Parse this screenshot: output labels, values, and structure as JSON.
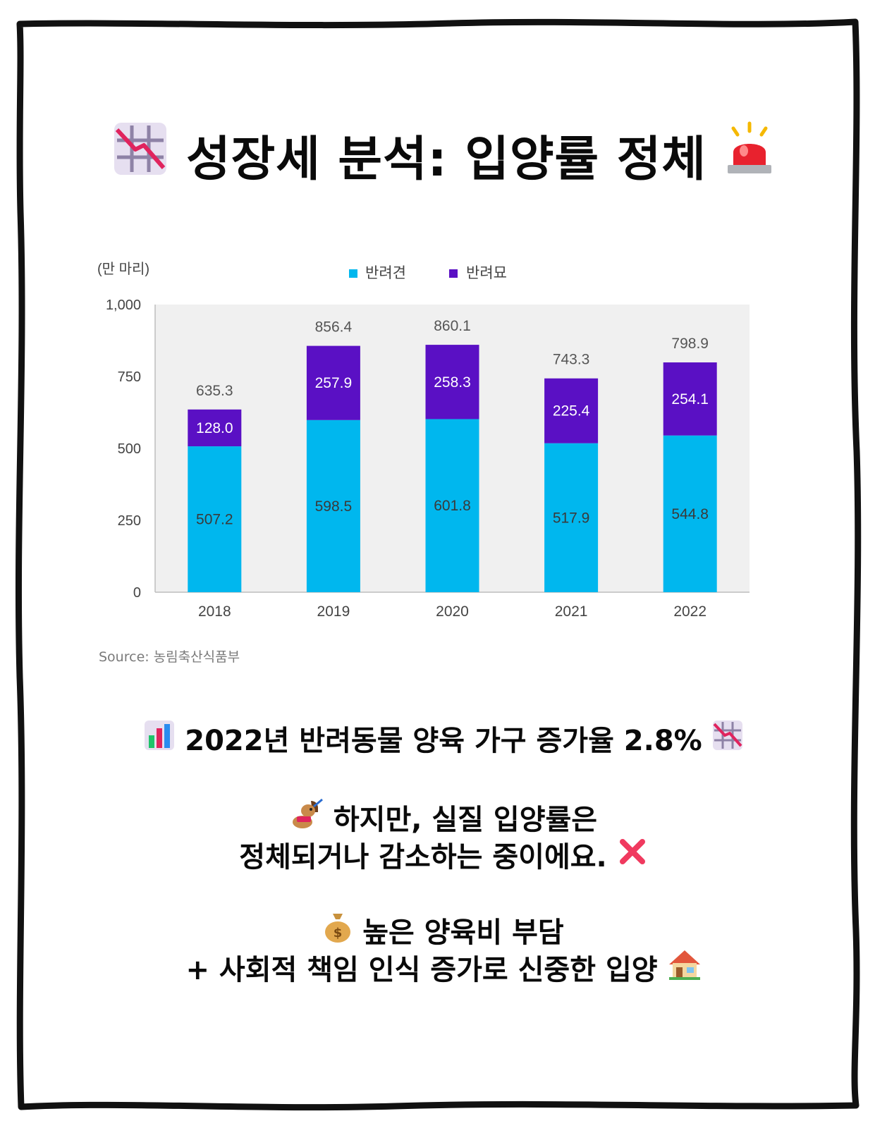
{
  "title": "성장세 분석: 입양률 정체",
  "icons": {
    "title_left": "chart-decreasing-icon",
    "title_right": "police-light-icon",
    "line1_left": "bar-chart-icon",
    "line1_right": "chart-decreasing-icon",
    "line2_left": "service-dog-icon",
    "line3_right": "cross-mark-icon",
    "line4_left": "money-bag-icon",
    "line5_right": "house-icon"
  },
  "chart_data": {
    "type": "bar",
    "stacked": true,
    "unit_label": "(만 마리)",
    "categories": [
      "2018",
      "2019",
      "2020",
      "2021",
      "2022"
    ],
    "series": [
      {
        "name": "반려견",
        "values": [
          507.2,
          598.5,
          601.8,
          517.9,
          544.8
        ],
        "color": "#00b7ee"
      },
      {
        "name": "반려묘",
        "values": [
          128.0,
          257.9,
          258.3,
          225.4,
          254.1
        ],
        "color": "#5a10c4"
      }
    ],
    "totals": [
      "635.3",
      "856.4",
      "860.1",
      "743.3",
      "798.9"
    ],
    "segment_labels": [
      [
        "507.2",
        "598.5",
        "601.8",
        "517.9",
        "544.8"
      ],
      [
        "128.0",
        "257.9",
        "258.3",
        "225.4",
        "254.1"
      ]
    ],
    "y_ticks": [
      "0",
      "250",
      "500",
      "750",
      "1,000"
    ],
    "ylim": [
      0,
      1000
    ],
    "legend_position": "top-center",
    "plot_background": "#f0f0f0"
  },
  "source": "Source: 농림축산식품부",
  "text": {
    "line1": "2022년 반려동물 양육 가구 증가율 2.8%",
    "line2": "하지만, 실질 입양률은",
    "line3": "정체되거나 감소하는 중이에요.",
    "line4": "높은 양육비 부담",
    "line5": "+ 사회적 책임 인식 증가로 신중한 입양"
  }
}
